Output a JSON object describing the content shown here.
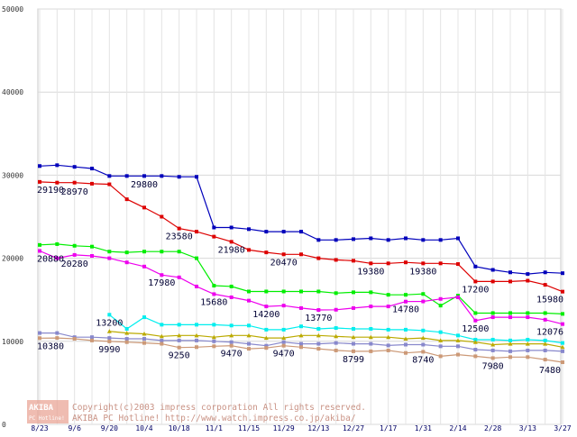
{
  "chart_data": {
    "type": "line",
    "title": "",
    "xlabel": "",
    "ylabel": "",
    "ylim": [
      0,
      50000
    ],
    "grid": true,
    "y_ticks": [
      "0",
      "10000",
      "20000",
      "30000",
      "40000",
      "50000"
    ],
    "x_tick_labels": [
      "8/23",
      "9/6",
      "9/20",
      "10/4",
      "10/18",
      "11/1",
      "11/15",
      "11/29",
      "12/13",
      "12/27",
      "1/17",
      "1/31",
      "2/14",
      "2/28",
      "3/13",
      "3/27"
    ],
    "x": [
      "8/23",
      "8/30",
      "9/6",
      "9/13",
      "9/20",
      "9/27",
      "10/4",
      "10/11",
      "10/18",
      "10/25",
      "11/1",
      "11/8",
      "11/15",
      "11/22",
      "11/29",
      "12/6",
      "12/13",
      "12/20",
      "12/27",
      "1/10",
      "1/17",
      "1/24",
      "1/31",
      "2/7",
      "2/14",
      "2/21",
      "2/28",
      "3/6",
      "3/13",
      "3/20",
      "3/27"
    ],
    "series": [
      {
        "color": "#0000bb",
        "marker": "square",
        "values": [
          31100,
          31200,
          31000,
          30800,
          29900,
          29900,
          29900,
          29900,
          29800,
          29800,
          23700,
          23700,
          23500,
          23200,
          23200,
          23200,
          22200,
          22200,
          22300,
          22400,
          22200,
          22400,
          22200,
          22200,
          22400,
          19000,
          18600,
          18300,
          18100,
          18300,
          18200
        ]
      },
      {
        "color": "#dd0000",
        "marker": "square",
        "values": [
          29190,
          29100,
          29100,
          28970,
          28900,
          27100,
          26100,
          25000,
          23580,
          23200,
          22600,
          21980,
          21000,
          20700,
          20470,
          20470,
          20000,
          19800,
          19700,
          19380,
          19380,
          19500,
          19380,
          19380,
          19300,
          17200,
          17200,
          17200,
          17300,
          16800,
          15980
        ]
      },
      {
        "color": "#00ee00",
        "marker": "square",
        "values": [
          21600,
          21700,
          21500,
          21400,
          20800,
          20700,
          20800,
          20800,
          20800,
          20000,
          16700,
          16600,
          16000,
          16000,
          16000,
          16000,
          16000,
          15800,
          15900,
          15900,
          15600,
          15600,
          15700,
          14300,
          15500,
          13400,
          13400,
          13400,
          13400,
          13400,
          13300
        ]
      },
      {
        "color": "#ee00ee",
        "marker": "square",
        "values": [
          20880,
          20000,
          20400,
          20280,
          20000,
          19500,
          19000,
          17980,
          17700,
          16600,
          15680,
          15300,
          14900,
          14200,
          14300,
          14000,
          13770,
          13800,
          14000,
          14200,
          14200,
          14780,
          14800,
          15100,
          15300,
          12500,
          12900,
          12900,
          12900,
          12600,
          12076
        ]
      },
      {
        "color": "#00eeee",
        "marker": "square",
        "values": [
          null,
          null,
          null,
          null,
          13200,
          11500,
          12900,
          12000,
          12000,
          12000,
          12000,
          11900,
          11900,
          11400,
          11400,
          11800,
          11500,
          11600,
          11500,
          11500,
          11400,
          11400,
          11300,
          11100,
          10700,
          10200,
          10200,
          10100,
          10200,
          10100,
          9800
        ]
      },
      {
        "color": "#bbaa00",
        "marker": "triangle",
        "values": [
          null,
          null,
          null,
          null,
          11200,
          11000,
          10900,
          10600,
          10700,
          10700,
          10500,
          10700,
          10700,
          10400,
          10400,
          10700,
          10700,
          10600,
          10500,
          10500,
          10500,
          10300,
          10400,
          10100,
          10100,
          9900,
          9600,
          9700,
          9700,
          9700,
          9300
        ]
      },
      {
        "color": "#8888cc",
        "marker": "square",
        "values": [
          11000,
          11000,
          10500,
          10500,
          10400,
          10300,
          10300,
          10100,
          10100,
          10100,
          10000,
          9900,
          9700,
          9470,
          9900,
          9700,
          9700,
          9800,
          9700,
          9700,
          9500,
          9600,
          9600,
          9400,
          9400,
          9000,
          8900,
          8800,
          8900,
          8900,
          8800
        ]
      },
      {
        "color": "#cc9977",
        "marker": "square",
        "values": [
          10380,
          10400,
          10300,
          10100,
          9990,
          9900,
          9800,
          9700,
          9250,
          9300,
          9400,
          9470,
          9100,
          9200,
          9470,
          9300,
          9100,
          8900,
          8799,
          8799,
          8900,
          8600,
          8740,
          8200,
          8400,
          8200,
          7980,
          8100,
          8100,
          7800,
          7480
        ]
      }
    ],
    "data_labels": [
      {
        "text": "29190",
        "x": "8/23",
        "y": 29190
      },
      {
        "text": "28970",
        "x": "9/6",
        "y": 28970
      },
      {
        "text": "29800",
        "x": "10/4",
        "y": 29800
      },
      {
        "text": "23580",
        "x": "10/18",
        "y": 23580
      },
      {
        "text": "21980",
        "x": "11/8",
        "y": 21980
      },
      {
        "text": "20470",
        "x": "11/29",
        "y": 20470
      },
      {
        "text": "19380",
        "x": "1/10",
        "y": 19380
      },
      {
        "text": "19380",
        "x": "1/31",
        "y": 19380
      },
      {
        "text": "17200",
        "x": "2/21",
        "y": 17200
      },
      {
        "text": "15980",
        "x": "3/27",
        "y": 15980
      },
      {
        "text": "20880",
        "x": "8/23",
        "y": 20880
      },
      {
        "text": "20280",
        "x": "9/6",
        "y": 20280
      },
      {
        "text": "17980",
        "x": "10/11",
        "y": 17980
      },
      {
        "text": "15680",
        "x": "11/1",
        "y": 15680
      },
      {
        "text": "14200",
        "x": "11/22",
        "y": 14200
      },
      {
        "text": "13770",
        "x": "12/13",
        "y": 13770
      },
      {
        "text": "14780",
        "x": "1/24",
        "y": 14780
      },
      {
        "text": "12500",
        "x": "2/21",
        "y": 12500
      },
      {
        "text": "12076",
        "x": "3/27",
        "y": 12076
      },
      {
        "text": "13200",
        "x": "9/20",
        "y": 13200
      },
      {
        "text": "10380",
        "x": "8/23",
        "y": 10380
      },
      {
        "text": "9990",
        "x": "9/20",
        "y": 9990
      },
      {
        "text": "9250",
        "x": "10/18",
        "y": 9250
      },
      {
        "text": "9470",
        "x": "11/8",
        "y": 9470
      },
      {
        "text": "9470",
        "x": "11/29",
        "y": 9470
      },
      {
        "text": "8799",
        "x": "12/27",
        "y": 8799
      },
      {
        "text": "8740",
        "x": "1/31",
        "y": 8740
      },
      {
        "text": "7980",
        "x": "2/28",
        "y": 7980
      },
      {
        "text": "7480",
        "x": "3/27",
        "y": 7480
      }
    ]
  },
  "watermark": {
    "logo_top": "AKIBA",
    "logo_bottom": "PC Hotline!",
    "line1": "Copyright(c)2003 impress corporation All rights reserved.",
    "line2": "AKIBA PC Hotline! http://www.watch.impress.co.jp/akiba/"
  }
}
